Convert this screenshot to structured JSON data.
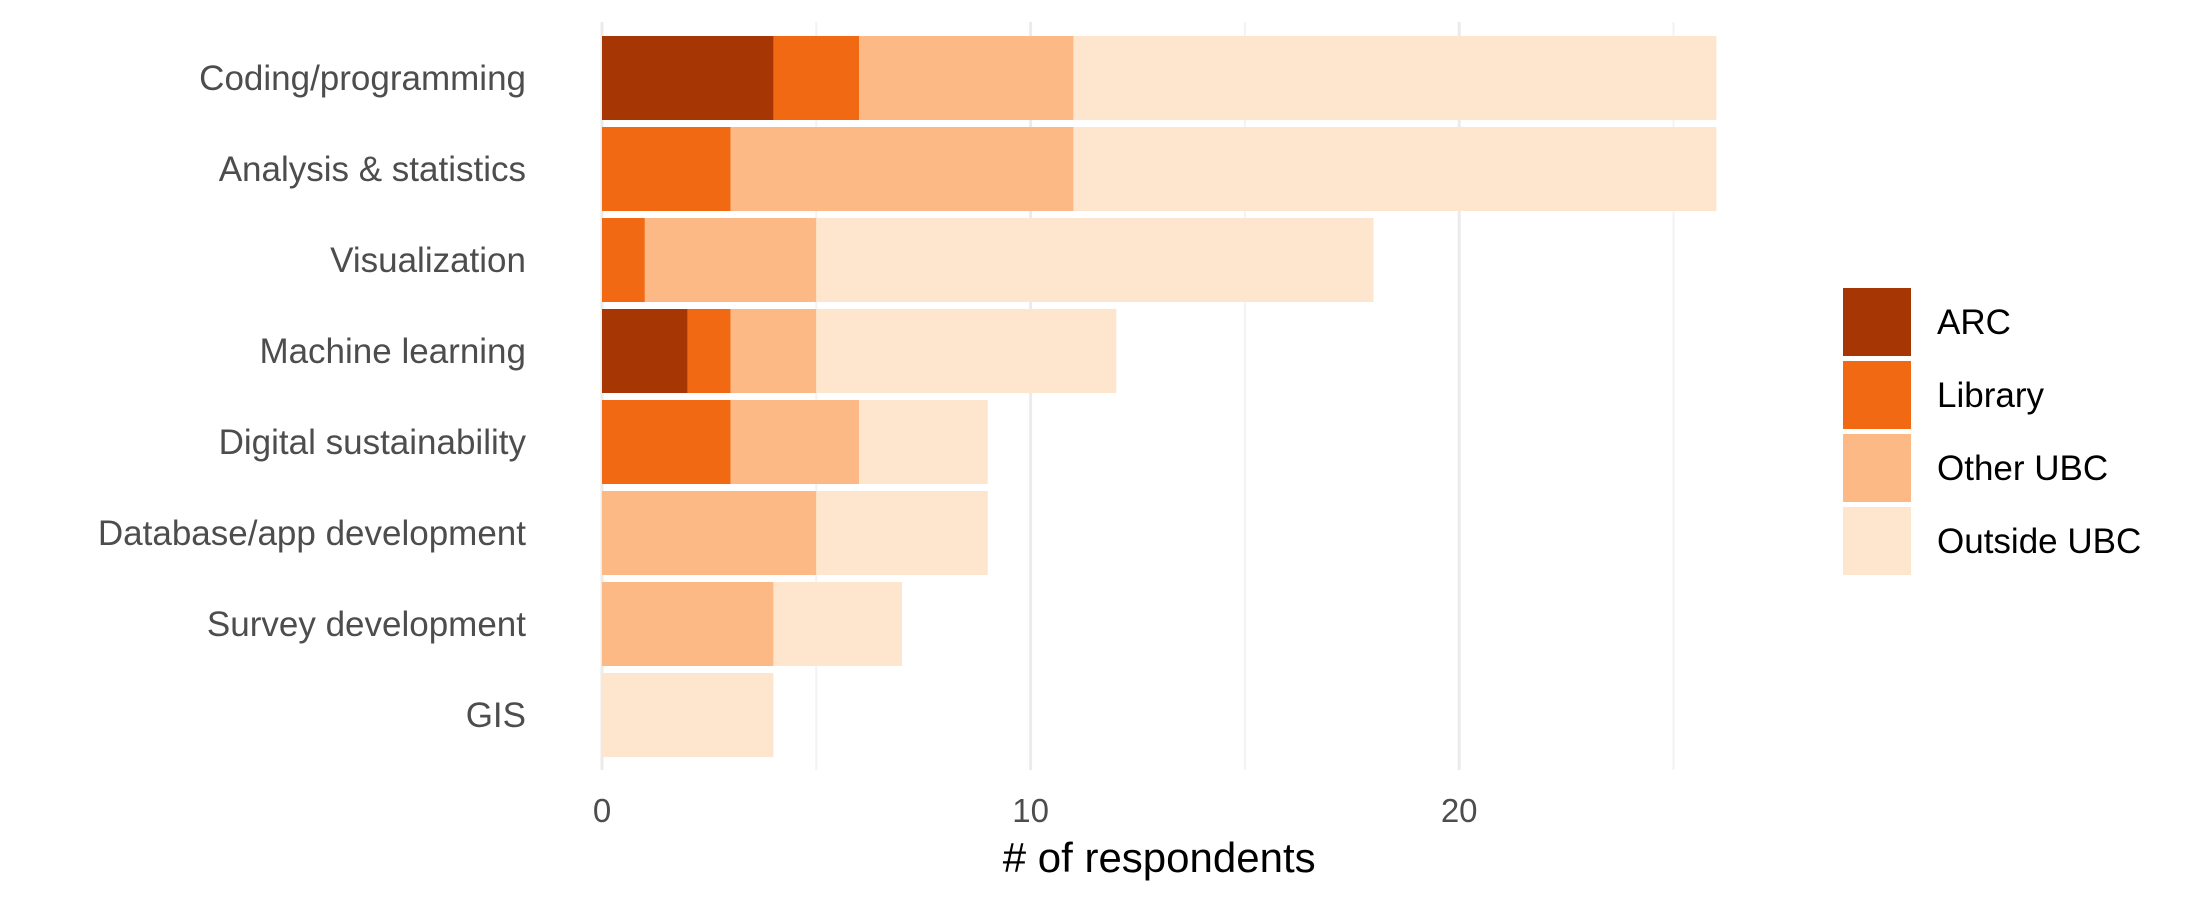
{
  "chart_data": {
    "type": "bar",
    "orientation": "horizontal",
    "stacked": true,
    "categories": [
      "Coding/programming",
      "Analysis & statistics",
      "Visualization",
      "Machine learning",
      "Digital sustainability",
      "Database/app development",
      "Survey development",
      "GIS"
    ],
    "series": [
      {
        "name": "ARC",
        "color": "#a63603",
        "values": [
          4,
          0,
          0,
          2,
          0,
          0,
          0,
          0
        ]
      },
      {
        "name": "Library",
        "color": "#f16913",
        "values": [
          2,
          3,
          1,
          1,
          3,
          0,
          0,
          0
        ]
      },
      {
        "name": "Other UBC",
        "color": "#fdb985",
        "values": [
          5,
          8,
          4,
          2,
          3,
          5,
          4,
          0
        ]
      },
      {
        "name": "Outside UBC",
        "color": "#fee6ce",
        "values": [
          15,
          15,
          13,
          7,
          3,
          4,
          3,
          4
        ]
      }
    ],
    "xlabel": "# of respondents",
    "ylabel": "",
    "xlim": [
      0,
      26
    ],
    "x_ticks": [
      0,
      10,
      20
    ],
    "grid": true,
    "legend_position": "right"
  }
}
